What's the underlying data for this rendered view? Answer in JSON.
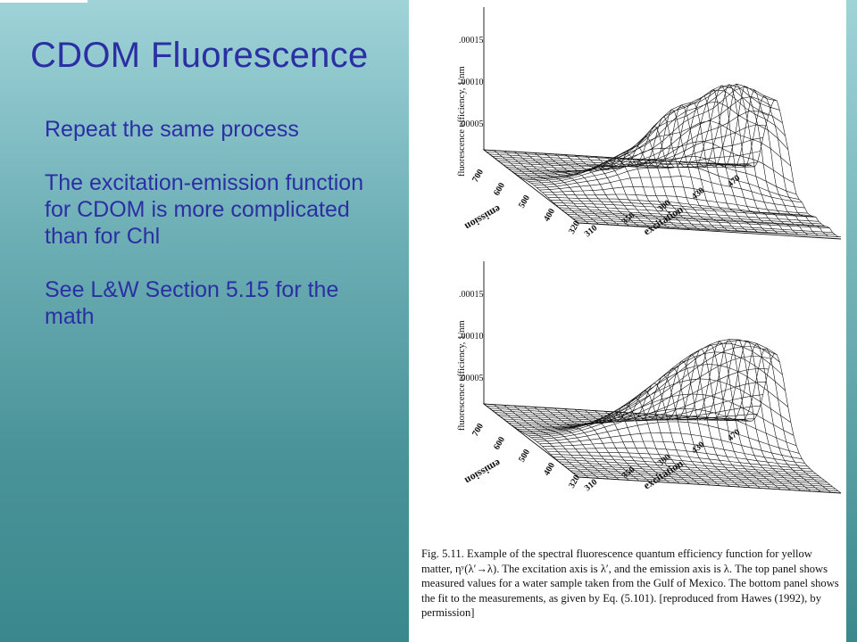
{
  "slide": {
    "title": "CDOM Fluorescence",
    "paragraphs": [
      "Repeat the same process",
      "The excitation-emission function for CDOM is more complicated than for Chl",
      "See L&W Section 5.15 for the math"
    ]
  },
  "figure": {
    "panels": [
      {
        "name": "measured",
        "z_axis_label": "fluorescence efficiency, 1/nm",
        "z_ticks": [
          ".00015",
          ".00010",
          ".00005"
        ],
        "emission_label": "emission",
        "emission_ticks": [
          "700",
          "600",
          "500",
          "400",
          "320"
        ],
        "excitation_label": "excitation",
        "excitation_ticks": [
          "310",
          "350",
          "390",
          "430",
          "470"
        ]
      },
      {
        "name": "fit",
        "z_axis_label": "fluorescence efficiency, 1/nm",
        "z_ticks": [
          ".00015",
          ".00010",
          ".00005"
        ],
        "emission_label": "emission",
        "emission_ticks": [
          "700",
          "600",
          "500",
          "400",
          "320"
        ],
        "excitation_label": "excitation",
        "excitation_ticks": [
          "310",
          "350",
          "390",
          "430",
          "470"
        ]
      }
    ],
    "caption": "Fig. 5.11. Example of the spectral fluorescence quantum efficiency function for yellow matter, ηʸ(λ′→λ). The excitation axis is λ′, and the emission axis is λ. The top panel shows measured values for a water sample taken from the Gulf of Mexico. The bottom panel shows the fit to the measurements, as given by Eq. (5.101). [reproduced from Hawes (1992), by permission]"
  }
}
